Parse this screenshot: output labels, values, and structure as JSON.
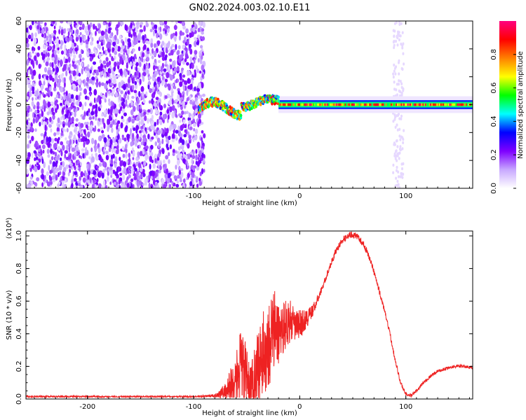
{
  "figure_title": "GN02.2024.003.02.10.E11",
  "chart_data": [
    {
      "type": "heatmap",
      "xlabel": "Height of straight line (km)",
      "ylabel": "Frequency (Hz)",
      "xlim": [
        -258,
        163
      ],
      "ylim": [
        -60,
        60
      ],
      "xticks": [
        -200,
        -100,
        0,
        100
      ],
      "xtick_labels": [
        "-200",
        "-100",
        "0",
        "100"
      ],
      "yticks": [
        -60,
        -40,
        -20,
        0,
        20,
        40,
        60
      ],
      "ytick_labels": [
        "-60",
        "-40",
        "-20",
        "0",
        "20",
        "40",
        "60"
      ],
      "colorbar": {
        "label": "Normalized spectral amplitude",
        "range": [
          0.0,
          1.0
        ],
        "ticks": [
          0.0,
          0.2,
          0.4,
          0.6,
          0.8
        ],
        "tick_labels": [
          "0.0",
          "0.2",
          "0.4",
          "0.6",
          "0.8"
        ],
        "colormap": [
          "#ffffff",
          "#c8a8ff",
          "#7f00ff",
          "#0000ff",
          "#00ffff",
          "#00ff00",
          "#ffff00",
          "#ff8000",
          "#ff0000",
          "#ff0080"
        ]
      },
      "regions": [
        {
          "x_range": [
            -258,
            -90
          ],
          "y_range": [
            -60,
            60
          ],
          "amplitude": [
            0.05,
            0.25
          ]
        },
        {
          "x_range": [
            -95,
            -20
          ],
          "y_range": [
            -12,
            12
          ],
          "amplitude": [
            0.3,
            0.9
          ]
        },
        {
          "x_range": [
            -20,
            163
          ],
          "y_range": [
            -3,
            3
          ],
          "amplitude": [
            0.5,
            1.0
          ]
        },
        {
          "x_range": [
            88,
            98
          ],
          "y_range": [
            -60,
            60
          ],
          "amplitude": [
            0.02,
            0.08
          ]
        }
      ]
    },
    {
      "type": "line",
      "xlabel": "Height of straight line (km)",
      "ylabel": "SNR (10 * v/v)",
      "yscale_label": "(x10⁴)",
      "xlim": [
        -258,
        163
      ],
      "ylim": [
        0.0,
        1.03
      ],
      "xticks": [
        -200,
        -100,
        0,
        100
      ],
      "xtick_labels": [
        "-200",
        "-100",
        "0",
        "100"
      ],
      "yticks": [
        0.0,
        0.2,
        0.4,
        0.6,
        0.8,
        1.0
      ],
      "ytick_labels": [
        "0.0",
        "0.2",
        "0.4",
        "0.6",
        "0.8",
        "1.0"
      ],
      "color": "#ee2222",
      "x": [
        -258,
        -200,
        -150,
        -100,
        -80,
        -70,
        -60,
        -55,
        -50,
        -45,
        -40,
        -35,
        -30,
        -25,
        -20,
        -15,
        -10,
        -5,
        0,
        5,
        10,
        15,
        20,
        25,
        30,
        35,
        40,
        45,
        50,
        55,
        60,
        65,
        70,
        75,
        80,
        85,
        90,
        95,
        100,
        105,
        110,
        115,
        120,
        125,
        130,
        135,
        140,
        145,
        150,
        155,
        163
      ],
      "y": [
        0.015,
        0.015,
        0.015,
        0.015,
        0.02,
        0.05,
        0.12,
        0.2,
        0.12,
        0.08,
        0.18,
        0.28,
        0.32,
        0.42,
        0.4,
        0.45,
        0.48,
        0.45,
        0.46,
        0.48,
        0.52,
        0.58,
        0.66,
        0.75,
        0.84,
        0.92,
        0.97,
        1.0,
        1.01,
        0.99,
        0.95,
        0.88,
        0.78,
        0.66,
        0.54,
        0.4,
        0.24,
        0.1,
        0.03,
        0.02,
        0.05,
        0.09,
        0.12,
        0.15,
        0.17,
        0.18,
        0.19,
        0.2,
        0.2,
        0.2,
        0.19
      ],
      "noise": [
        0.005,
        0.005,
        0.005,
        0.005,
        0.01,
        0.05,
        0.18,
        0.25,
        0.2,
        0.16,
        0.22,
        0.25,
        0.28,
        0.28,
        0.2,
        0.16,
        0.14,
        0.1,
        0.09,
        0.07,
        0.05,
        0.03,
        0.02,
        0.02,
        0.02,
        0.02,
        0.02,
        0.02,
        0.02,
        0.02,
        0.02,
        0.02,
        0.02,
        0.02,
        0.015,
        0.015,
        0.015,
        0.015,
        0.01,
        0.01,
        0.01,
        0.01,
        0.01,
        0.01,
        0.01,
        0.01,
        0.01,
        0.01,
        0.01,
        0.01,
        0.01
      ]
    }
  ]
}
